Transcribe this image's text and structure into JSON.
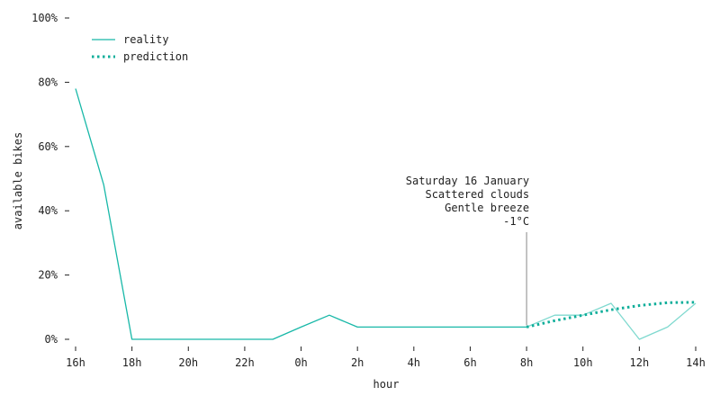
{
  "chart_data": {
    "type": "line",
    "xlabel": "hour",
    "ylabel": "available bikes",
    "x_ticks": [
      "16h",
      "18h",
      "20h",
      "22h",
      "0h",
      "2h",
      "4h",
      "6h",
      "8h",
      "10h",
      "12h",
      "14h"
    ],
    "y_ticks": [
      "0%",
      "20%",
      "40%",
      "60%",
      "80%",
      "100%"
    ],
    "ylim": [
      0,
      100
    ],
    "xlim": [
      16,
      38
    ],
    "x_units": "hours since midnight (24 = next-day 0h)",
    "legend": {
      "position": "top-left",
      "entries": [
        "reality",
        "prediction"
      ]
    },
    "series": [
      {
        "name": "reality",
        "style": "solid",
        "color": "#18b8a8",
        "x": [
          16,
          17,
          18,
          19,
          20,
          21,
          22,
          23,
          24,
          25,
          26,
          27,
          28,
          29,
          30,
          31,
          32
        ],
        "values": [
          78,
          48,
          0,
          0,
          0,
          0,
          0,
          0,
          3.8,
          7.5,
          3.8,
          3.8,
          3.8,
          3.8,
          3.8,
          3.8,
          3.8
        ]
      },
      {
        "name": "reality (after annotation)",
        "style": "solid-light",
        "color": "#7fd9cf",
        "x": [
          32,
          33,
          34,
          35,
          36,
          37,
          38
        ],
        "values": [
          3.8,
          7.5,
          7.5,
          11.2,
          0,
          3.8,
          11.2
        ]
      },
      {
        "name": "prediction",
        "style": "dotted",
        "color": "#0fae9a",
        "x": [
          32,
          33,
          34,
          35,
          36,
          37,
          38
        ],
        "values": [
          3.8,
          5.8,
          7.5,
          9.2,
          10.5,
          11.4,
          11.5
        ]
      }
    ],
    "annotation": {
      "x": 32,
      "y_top": 33,
      "lines": [
        "Saturday 16 January",
        "Scattered clouds",
        "Gentle breeze",
        "-1°C"
      ]
    }
  }
}
